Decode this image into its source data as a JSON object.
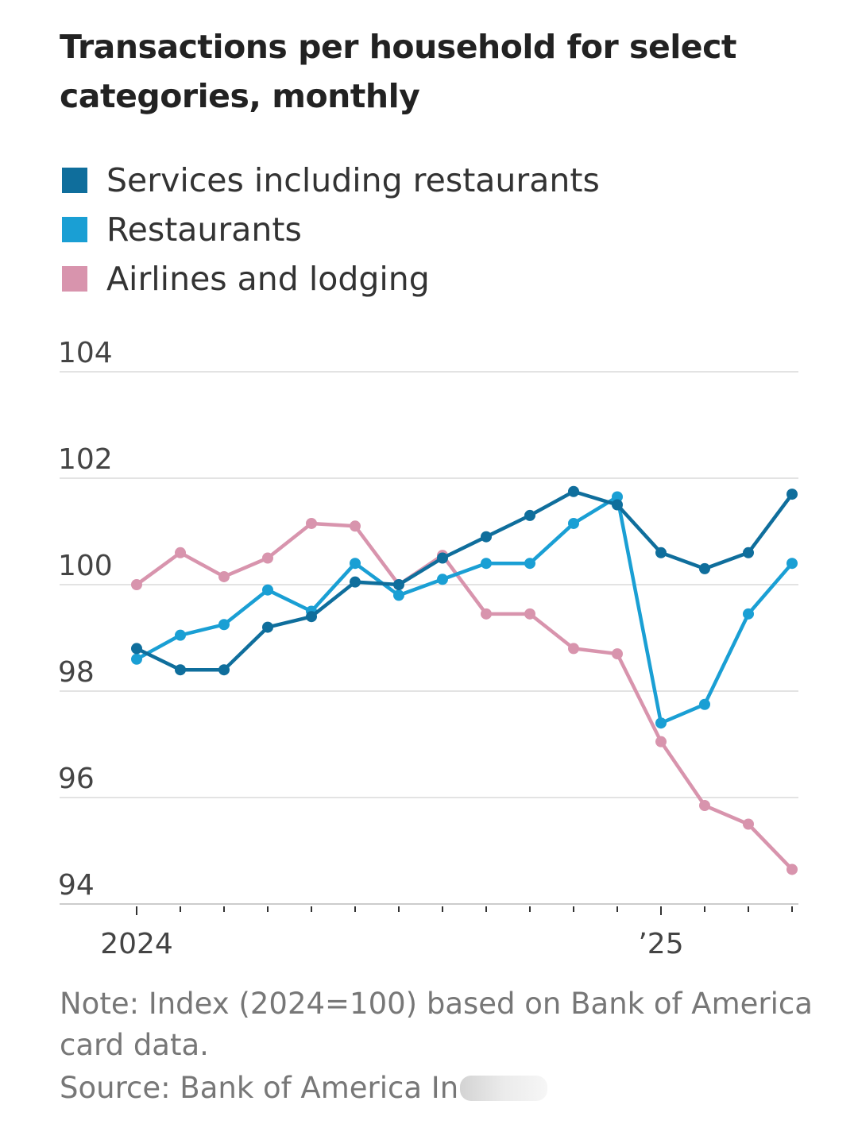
{
  "title": "Transactions per household for select categories, monthly",
  "note": "Note: Index (2024=100) based on Bank of America card data.",
  "source": "Source: Bank of America In",
  "chart_data": {
    "type": "line",
    "title": "Transactions per household for select categories, monthly",
    "xlabel": "",
    "ylabel": "",
    "x": [
      "2024-01",
      "2024-02",
      "2024-03",
      "2024-04",
      "2024-05",
      "2024-06",
      "2024-07",
      "2024-08",
      "2024-09",
      "2024-10",
      "2024-11",
      "2024-12",
      "2025-01",
      "2025-02",
      "2025-03",
      "2025-04"
    ],
    "x_tick_labels": [
      {
        "x": "2024-01",
        "label": "2024"
      },
      {
        "x": "2025-01",
        "label": "’25"
      }
    ],
    "ylim": [
      94,
      104
    ],
    "yticks": [
      94,
      96,
      98,
      100,
      102,
      104
    ],
    "grid": true,
    "legend_position": "top-left",
    "series": [
      {
        "name": "Services including restaurants",
        "color": "#0f6e9c",
        "values": [
          98.8,
          98.4,
          98.4,
          99.2,
          99.4,
          100.05,
          100.0,
          100.5,
          100.9,
          101.3,
          101.75,
          101.5,
          100.6,
          100.3,
          100.6,
          101.7
        ]
      },
      {
        "name": "Restaurants",
        "color": "#1a9fd4",
        "values": [
          98.6,
          99.05,
          99.25,
          99.9,
          99.5,
          100.4,
          99.8,
          100.1,
          100.4,
          100.4,
          101.15,
          101.65,
          97.4,
          97.75,
          99.45,
          100.4
        ]
      },
      {
        "name": "Airlines and lodging",
        "color": "#d894ad",
        "values": [
          100.0,
          100.6,
          100.15,
          100.5,
          101.15,
          101.1,
          100.0,
          100.55,
          99.45,
          99.45,
          98.8,
          98.7,
          97.05,
          95.85,
          95.5,
          94.65
        ]
      }
    ]
  }
}
